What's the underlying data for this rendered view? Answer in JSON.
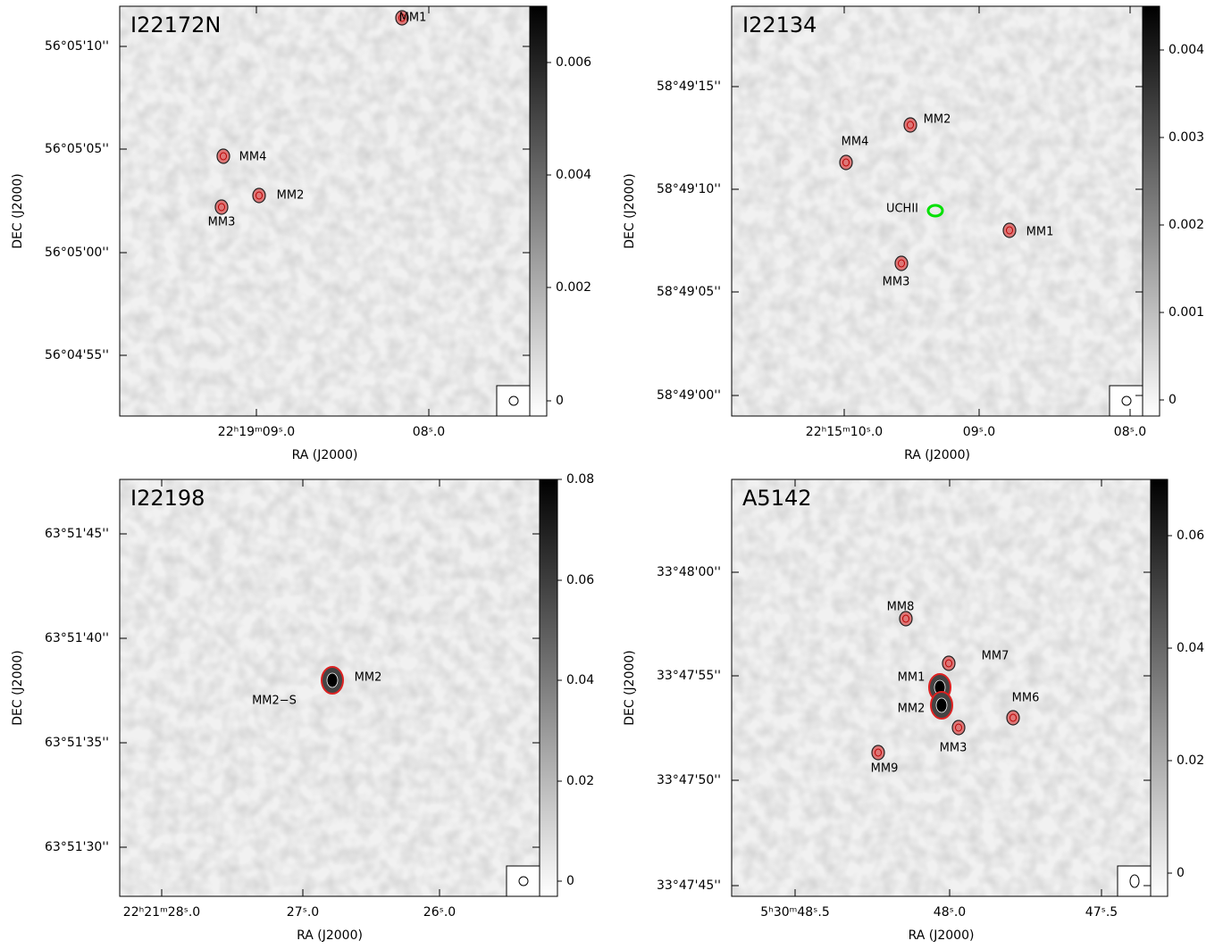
{
  "panels": [
    {
      "name": "I22172N",
      "xlabel": "RA (J2000)",
      "ylabel": "DEC (J2000)",
      "xticks": [
        "22ʰ19ᵐ09ˢ.0",
        "08ˢ.0"
      ],
      "yticks": [
        "56°05'10''",
        "56°05'05''",
        "56°05'00''",
        "56°04'55''"
      ],
      "colorbar_ticks": [
        0.006,
        0.004,
        0.002,
        0
      ],
      "sources": [
        "MM1",
        "MM4",
        "MM2",
        "MM3"
      ]
    },
    {
      "name": "I22134",
      "xlabel": "RA (J2000)",
      "ylabel": "DEC (J2000)",
      "xticks": [
        "22ʰ15ᵐ10ˢ.0",
        "09ˢ.0",
        "08ˢ.0"
      ],
      "yticks": [
        "58°49'15''",
        "58°49'10''",
        "58°49'05''",
        "58°49'00''"
      ],
      "colorbar_ticks": [
        0.004,
        0.003,
        0.002,
        0.001,
        0
      ],
      "sources": [
        "MM2",
        "MM4",
        "UCHII",
        "MM1",
        "MM3"
      ]
    },
    {
      "name": "I22198",
      "xlabel": "RA (J2000)",
      "ylabel": "DEC (J2000)",
      "xticks": [
        "22ʰ21ᵐ28ˢ.0",
        "27ˢ.0",
        "26ˢ.0"
      ],
      "yticks": [
        "63°51'45''",
        "63°51'40''",
        "63°51'35''",
        "63°51'30''"
      ],
      "colorbar_ticks": [
        0.08,
        0.06,
        0.04,
        0.02,
        0
      ],
      "sources": [
        "MM2",
        "MM2−S"
      ]
    },
    {
      "name": "A5142",
      "xlabel": "RA (J2000)",
      "ylabel": "DEC (J2000)",
      "xticks": [
        "5ʰ30ᵐ48ˢ.5",
        "48ˢ.0",
        "47ˢ.5"
      ],
      "yticks": [
        "33°48'00''",
        "33°47'55''",
        "33°47'50''",
        "33°47'45''"
      ],
      "colorbar_ticks": [
        0.06,
        0.04,
        0.02,
        0
      ],
      "sources": [
        "MM8",
        "MM7",
        "MM1",
        "MM2",
        "MM6",
        "MM3",
        "MM9"
      ]
    }
  ]
}
